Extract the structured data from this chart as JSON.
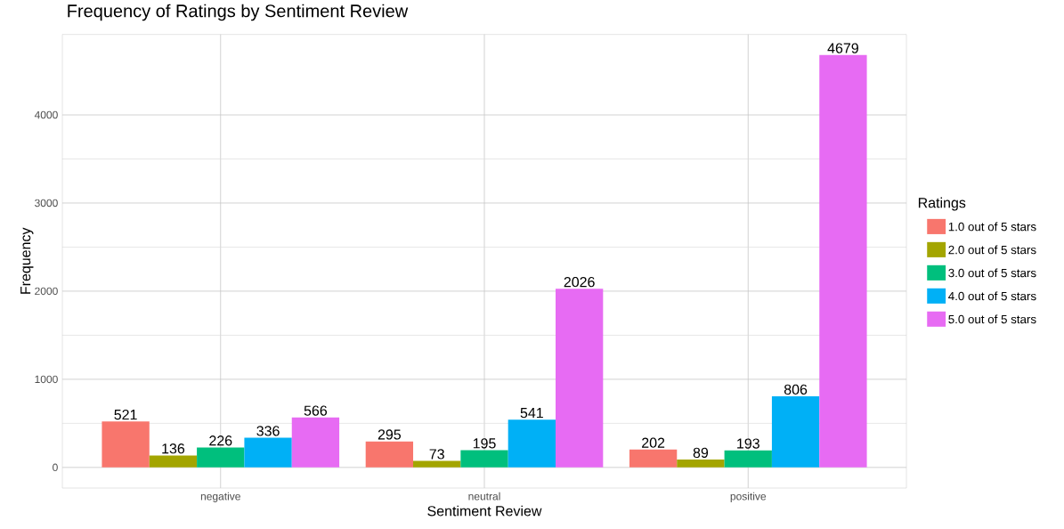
{
  "chart_data": {
    "type": "bar",
    "title": "Frequency of Ratings by Sentiment Review",
    "xlabel": "Sentiment Review",
    "ylabel": "Frequency",
    "legend_title": "Ratings",
    "categories": [
      "negative",
      "neutral",
      "positive"
    ],
    "series": [
      {
        "name": "1.0 out of 5 stars",
        "color": "#f8766d",
        "values": [
          521,
          295,
          202
        ]
      },
      {
        "name": "2.0 out of 5 stars",
        "color": "#a3a500",
        "values": [
          136,
          73,
          89
        ]
      },
      {
        "name": "3.0 out of 5 stars",
        "color": "#00bf7d",
        "values": [
          226,
          195,
          193
        ]
      },
      {
        "name": "4.0 out of 5 stars",
        "color": "#00b0f6",
        "values": [
          336,
          541,
          806
        ]
      },
      {
        "name": "5.0 out of 5 stars",
        "color": "#e76bf3",
        "values": [
          566,
          2026,
          4679
        ]
      }
    ],
    "ylim": [
      -234,
      4913
    ],
    "yticks": [
      0,
      1000,
      2000,
      3000,
      4000
    ],
    "grid": true,
    "legend": "right",
    "data_labels": true
  }
}
